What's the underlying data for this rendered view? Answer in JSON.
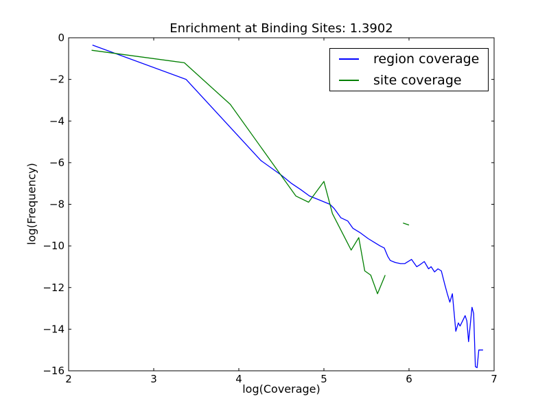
{
  "chart_data": {
    "type": "line",
    "title": "Enrichment at Binding Sites: 1.3902",
    "xlabel": "log(Coverage)",
    "ylabel": "log(Frequency)",
    "xlim": [
      2,
      7
    ],
    "ylim": [
      -16,
      0
    ],
    "xticks": [
      2,
      3,
      4,
      5,
      6,
      7
    ],
    "yticks": [
      0,
      -2,
      -4,
      -6,
      -8,
      -10,
      -12,
      -14,
      -16
    ],
    "grid": false,
    "legend_position": "upper right",
    "frame_color": "#000000",
    "background_color": "#ffffff",
    "series": [
      {
        "name": "region coverage",
        "color": "#0000ff",
        "segments": [
          {
            "x": [
              2.28,
              3.38,
              4.26,
              4.5,
              4.62,
              4.73,
              4.83,
              4.95,
              5.07,
              5.12,
              5.2,
              5.28,
              5.34,
              5.42,
              5.52,
              5.6,
              5.66,
              5.71,
              5.75,
              5.78,
              5.84,
              5.9,
              5.95,
              6.03,
              6.09,
              6.13,
              6.18,
              6.23,
              6.26,
              6.3,
              6.34,
              6.38,
              6.42,
              6.45,
              6.48,
              6.51,
              6.55,
              6.58,
              6.6,
              6.63,
              6.66,
              6.68,
              6.7,
              6.74,
              6.76,
              6.78,
              6.8,
              6.82,
              6.87
            ],
            "y": [
              -0.35,
              -2.0,
              -5.9,
              -6.6,
              -7.0,
              -7.3,
              -7.6,
              -7.8,
              -8.0,
              -8.2,
              -8.65,
              -8.8,
              -9.15,
              -9.35,
              -9.65,
              -9.85,
              -10.0,
              -10.1,
              -10.5,
              -10.7,
              -10.8,
              -10.85,
              -10.85,
              -10.65,
              -11.0,
              -10.9,
              -10.75,
              -11.1,
              -11.0,
              -11.25,
              -11.1,
              -11.2,
              -11.85,
              -12.3,
              -12.7,
              -12.3,
              -14.1,
              -13.7,
              -13.85,
              -13.6,
              -13.35,
              -13.6,
              -14.6,
              -12.95,
              -13.25,
              -15.8,
              -15.85,
              -15.0,
              -15.0
            ]
          }
        ]
      },
      {
        "name": "site coverage",
        "color": "#007f00",
        "segments": [
          {
            "x": [
              2.27,
              3.36,
              3.9,
              4.67,
              4.82,
              5.0,
              5.1,
              5.32,
              5.41,
              5.48,
              5.55,
              5.63,
              5.72
            ],
            "y": [
              -0.6,
              -1.2,
              -3.2,
              -7.6,
              -7.9,
              -6.9,
              -8.45,
              -10.2,
              -9.6,
              -11.2,
              -11.4,
              -12.3,
              -11.4
            ]
          },
          {
            "x": [
              5.93,
              6.0
            ],
            "y": [
              -8.9,
              -9.0
            ]
          }
        ]
      }
    ]
  }
}
